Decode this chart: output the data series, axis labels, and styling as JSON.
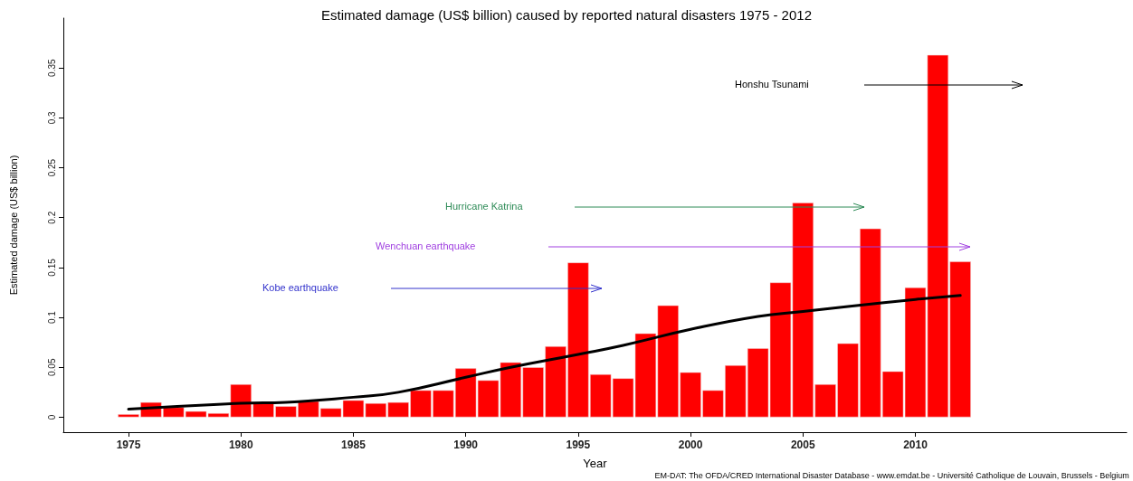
{
  "chart_data": {
    "type": "bar",
    "title": "Estimated damage (US$ billion) caused by reported natural disasters 1975 - 2012",
    "xlabel": "Year",
    "ylabel": "Estimated damage (US$ billion)",
    "x": [
      1975,
      1976,
      1977,
      1978,
      1979,
      1980,
      1981,
      1982,
      1983,
      1984,
      1985,
      1986,
      1987,
      1988,
      1989,
      1990,
      1991,
      1992,
      1993,
      1994,
      1995,
      1996,
      1997,
      1998,
      1999,
      2000,
      2001,
      2002,
      2003,
      2004,
      2005,
      2006,
      2007,
      2008,
      2009,
      2010,
      2011,
      2012
    ],
    "series": [
      {
        "color": "#ff0000",
        "values": [
          0.003,
          0.015,
          0.01,
          0.006,
          0.004,
          0.033,
          0.015,
          0.011,
          0.016,
          0.009,
          0.017,
          0.014,
          0.015,
          0.027,
          0.027,
          0.049,
          0.037,
          0.055,
          0.05,
          0.071,
          0.155,
          0.043,
          0.039,
          0.084,
          0.112,
          0.045,
          0.027,
          0.052,
          0.069,
          0.135,
          0.215,
          0.033,
          0.074,
          0.189,
          0.046,
          0.13,
          0.363,
          0.156
        ]
      },
      {
        "type": "line",
        "color": "#000000",
        "x": [
          1975,
          1980,
          1982,
          1985,
          1987,
          1990,
          1992,
          1995,
          1997,
          2000,
          2003,
          2005,
          2007,
          2010,
          2012
        ],
        "values": [
          0.008,
          0.014,
          0.015,
          0.02,
          0.025,
          0.04,
          0.05,
          0.063,
          0.072,
          0.088,
          0.101,
          0.106,
          0.111,
          0.118,
          0.122
        ]
      }
    ],
    "annotations": [
      "Honshu Tsunami",
      "Hurricane Katrina",
      "Wenchuan earthquake",
      "Kobe earthquake",
      "EM-DAT: The OFDA/CRED International Disaster Database - www.emdat.be - Université Catholique de Louvain, Brussels - Belgium"
    ],
    "xlim": [
      1972.1,
      2019.4
    ],
    "xticks": [
      1975,
      1980,
      1985,
      1990,
      1995,
      2000,
      2005,
      2010
    ],
    "ylim": [
      -0.015,
      0.4
    ],
    "yticks": [
      0,
      0.05,
      0.1,
      0.15,
      0.2,
      0.25,
      0.3,
      0.35
    ],
    "grid": false,
    "marker": "none",
    "line_style": "solid"
  }
}
